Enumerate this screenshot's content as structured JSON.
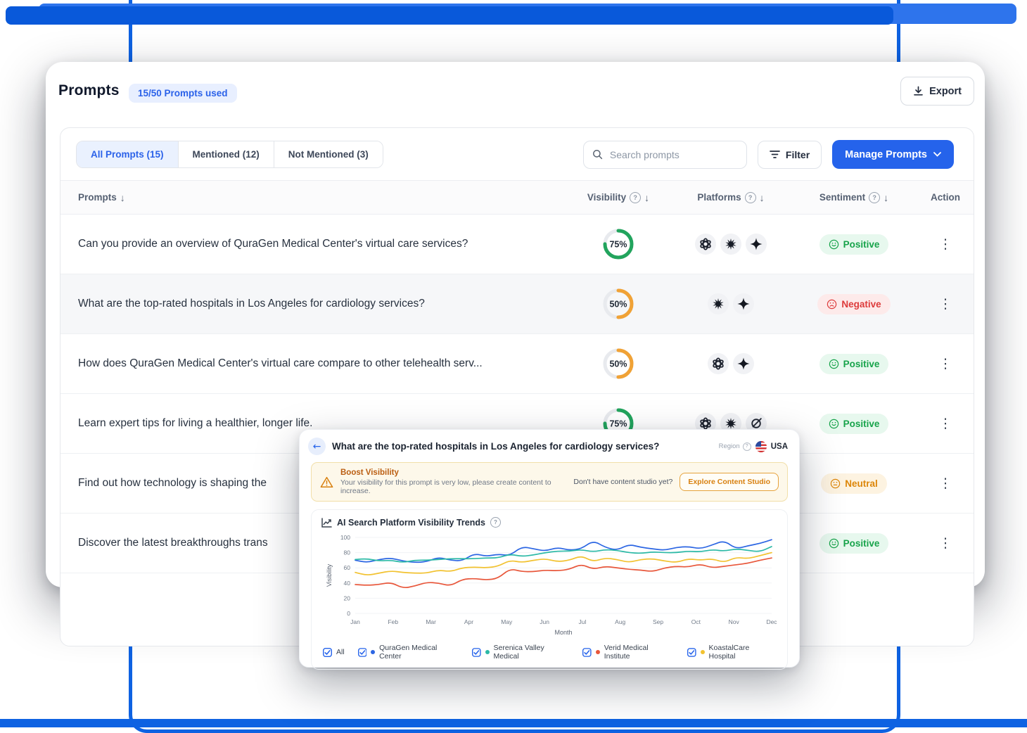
{
  "colors": {
    "accent": "#2563eb",
    "frame_blue": "#0e62e2",
    "donut_green": "#22a45d",
    "donut_amber": "#f0a236",
    "positive": "#17a34a",
    "negative": "#dd3b3b",
    "neutral": "#dd8609"
  },
  "header": {
    "title": "Prompts",
    "badge": "15/50 Prompts used",
    "export_label": "Export"
  },
  "toolbar": {
    "tabs": [
      {
        "label": "All Prompts (15)",
        "active": true
      },
      {
        "label": "Mentioned (12)",
        "active": false
      },
      {
        "label": "Not Mentioned (3)",
        "active": false
      }
    ],
    "search_placeholder": "Search prompts",
    "filter_label": "Filter",
    "manage_label": "Manage Prompts"
  },
  "table": {
    "columns": [
      {
        "label": "Prompts",
        "sort": true,
        "help": false
      },
      {
        "label": "Visibility",
        "sort": true,
        "help": true
      },
      {
        "label": "Platforms",
        "sort": true,
        "help": true
      },
      {
        "label": "Sentiment",
        "sort": true,
        "help": true
      },
      {
        "label": "Action",
        "sort": false,
        "help": false
      }
    ],
    "rows": [
      {
        "prompt": "Can you provide an overview of QuraGen Medical Center's virtual care services?",
        "visibility": 75,
        "visibility_color": "#22a45d",
        "platforms": [
          "chatgpt",
          "perplexity",
          "gemini"
        ],
        "sentiment": "Positive",
        "selected": false
      },
      {
        "prompt": "What are the top-rated hospitals in Los Angeles for cardiology services?",
        "visibility": 50,
        "visibility_color": "#f0a236",
        "platforms": [
          "perplexity",
          "gemini"
        ],
        "sentiment": "Negative",
        "selected": true
      },
      {
        "prompt": "How does QuraGen Medical Center's virtual care compare to other telehealth serv...",
        "visibility": 50,
        "visibility_color": "#f0a236",
        "platforms": [
          "chatgpt",
          "gemini"
        ],
        "sentiment": "Positive",
        "selected": false
      },
      {
        "prompt": "Learn expert tips for living a healthier, longer life.",
        "visibility": 75,
        "visibility_color": "#22a45d",
        "platforms": [
          "chatgpt",
          "perplexity",
          "grok"
        ],
        "sentiment": "Positive",
        "selected": false
      },
      {
        "prompt": "Find out how technology is shaping the",
        "visibility": null,
        "visibility_color": null,
        "platforms": [],
        "sentiment": "Neutral",
        "selected": false
      },
      {
        "prompt": "Discover the latest breakthroughs trans",
        "visibility": null,
        "visibility_color": null,
        "platforms": [],
        "sentiment": "Positive",
        "selected": false
      }
    ]
  },
  "overlay": {
    "title": "What are the top-rated hospitals in Los Angeles for cardiology services?",
    "region_label": "Region",
    "region_value": "USA",
    "banner": {
      "title": "Boost Visibility",
      "description": "Your visibility for this prompt is very low, please create content to increase.",
      "question": "Don't have content studio yet?",
      "cta": "Explore Content Studio"
    }
  },
  "chart_data": {
    "type": "line",
    "title": "AI Search Platform Visibility Trends",
    "xlabel": "Month",
    "ylabel": "Visibility",
    "ylim": [
      0,
      100
    ],
    "yticks": [
      0,
      20,
      40,
      60,
      80,
      100
    ],
    "x_categories": [
      "Jan",
      "Feb",
      "Mar",
      "Apr",
      "May",
      "Jun",
      "Jul",
      "Aug",
      "Sep",
      "Oct",
      "Nov",
      "Dec"
    ],
    "grid": true,
    "legend_position": "bottom",
    "legend_all_label": "All",
    "series": [
      {
        "name": "QuraGen Medical Center",
        "color": "#2c66e3",
        "values": [
          70,
          67,
          71,
          73,
          69,
          67,
          68,
          74,
          70,
          69,
          79,
          75,
          78,
          76,
          88,
          85,
          82,
          87,
          83,
          85,
          96,
          87,
          83,
          91,
          87,
          85,
          83,
          87,
          88,
          85,
          90,
          96,
          85,
          89,
          92,
          97
        ]
      },
      {
        "name": "Serenica Valley Medical",
        "color": "#2cb9a6",
        "values": [
          71,
          72,
          69,
          70,
          67,
          70,
          70,
          71,
          72,
          72,
          72,
          73,
          73,
          78,
          75,
          77,
          80,
          82,
          82,
          84,
          81,
          84,
          83,
          80,
          79,
          81,
          80,
          80,
          82,
          81,
          84,
          82,
          85,
          83,
          81,
          88
        ]
      },
      {
        "name": "Verid Medical Institute",
        "color": "#e8573b",
        "values": [
          38,
          37,
          38,
          41,
          33,
          36,
          41,
          40,
          36,
          45,
          46,
          44,
          46,
          59,
          55,
          55,
          57,
          56,
          58,
          65,
          58,
          62,
          60,
          58,
          57,
          55,
          60,
          62,
          61,
          65,
          60,
          62,
          64,
          66,
          70,
          73
        ]
      },
      {
        "name": "KoastalCare Hospital",
        "color": "#f2c230",
        "values": [
          54,
          50,
          53,
          56,
          54,
          53,
          53,
          57,
          55,
          60,
          61,
          60,
          62,
          70,
          67,
          70,
          72,
          68,
          70,
          76,
          68,
          73,
          71,
          67,
          71,
          72,
          69,
          67,
          72,
          70,
          72,
          67,
          74,
          72,
          76,
          80
        ]
      }
    ]
  }
}
